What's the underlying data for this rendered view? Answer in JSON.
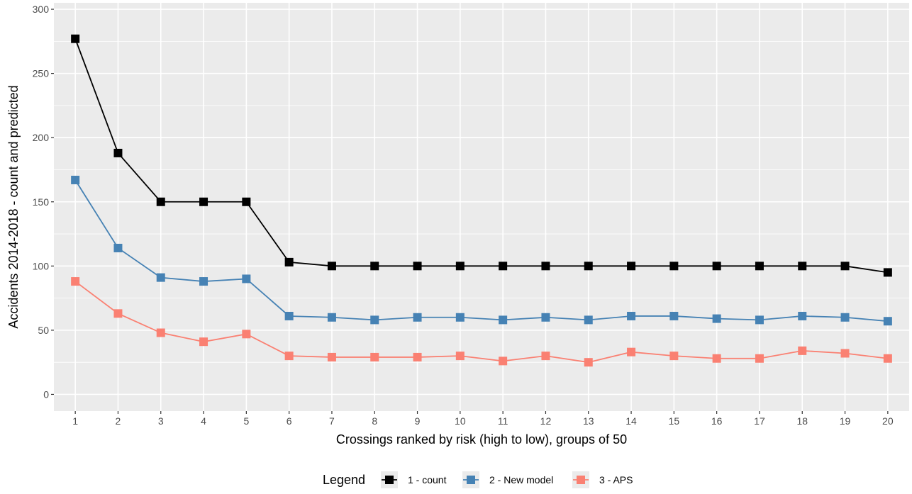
{
  "chart_data": {
    "type": "line",
    "title": "",
    "xlabel": "Crossings ranked by risk (high to low), groups of  50",
    "ylabel": "Accidents 2014-2018 - count and predicted",
    "x": [
      1,
      2,
      3,
      4,
      5,
      6,
      7,
      8,
      9,
      10,
      11,
      12,
      13,
      14,
      15,
      16,
      17,
      18,
      19,
      20
    ],
    "xlim": [
      0.5,
      20.5
    ],
    "ylim": [
      -13,
      305
    ],
    "yticks": [
      0,
      50,
      100,
      150,
      200,
      250,
      300
    ],
    "grid": true,
    "legend": {
      "title": "Legend",
      "position": "bottom"
    },
    "series": [
      {
        "name": "1 - count",
        "color": "#000000",
        "marker": "square",
        "values": [
          277,
          188,
          150,
          150,
          150,
          103,
          100,
          100,
          100,
          100,
          100,
          100,
          100,
          100,
          100,
          100,
          100,
          100,
          100,
          95
        ]
      },
      {
        "name": "2 - New model",
        "color": "#4682b4",
        "marker": "square",
        "values": [
          167,
          114,
          91,
          88,
          90,
          61,
          60,
          58,
          60,
          60,
          58,
          60,
          58,
          61,
          61,
          59,
          58,
          61,
          60,
          57
        ]
      },
      {
        "name": "3 - APS",
        "color": "#fa8072",
        "marker": "square",
        "values": [
          88,
          63,
          48,
          41,
          47,
          30,
          29,
          29,
          29,
          30,
          26,
          30,
          25,
          33,
          30,
          28,
          28,
          34,
          32,
          28
        ]
      }
    ]
  }
}
